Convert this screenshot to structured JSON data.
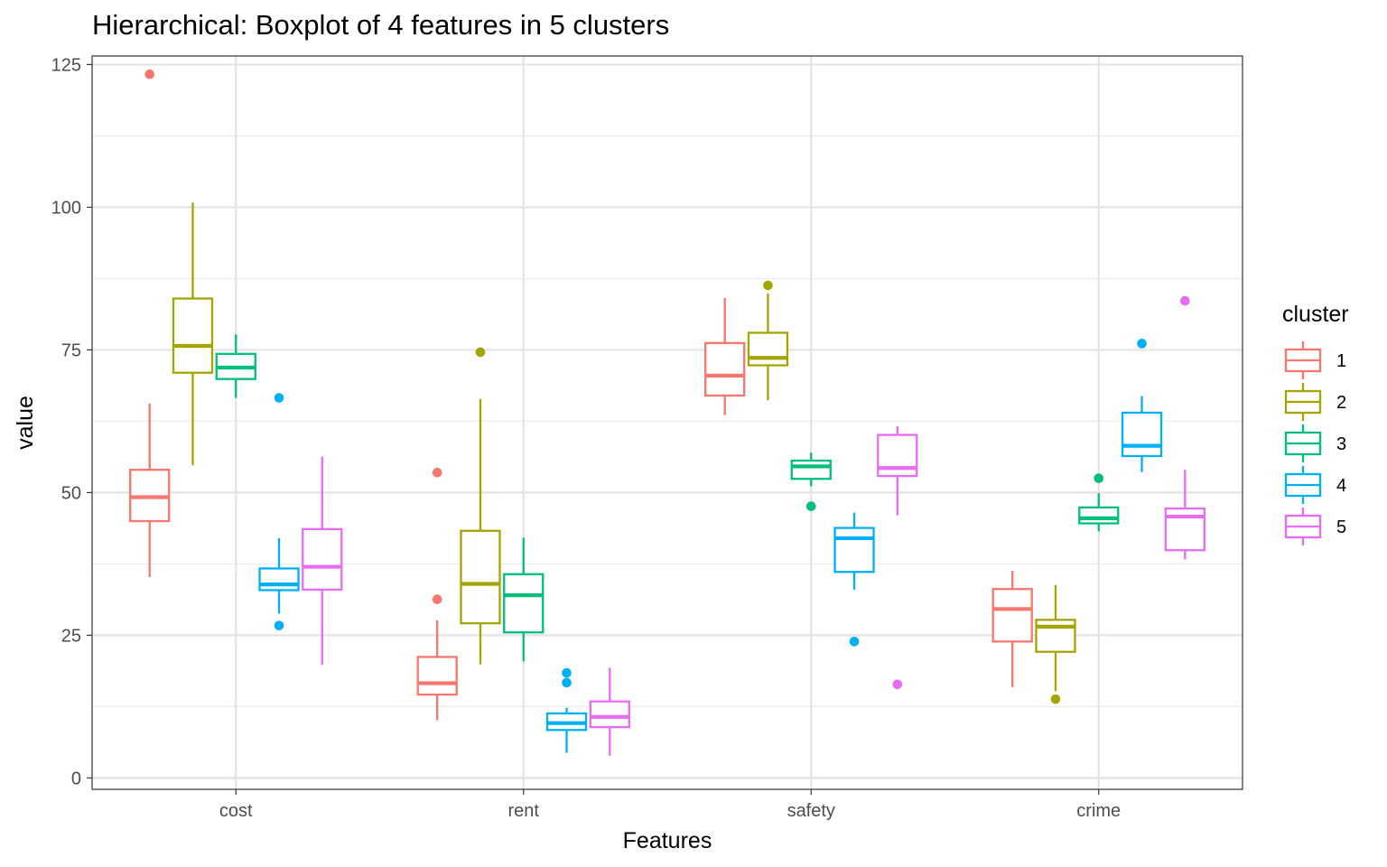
{
  "chart_data": {
    "type": "boxplot",
    "title": "Hierarchical: Boxplot of 4 features in 5 clusters",
    "xlabel": "Features",
    "ylabel": "value",
    "categories": [
      "cost",
      "rent",
      "safety",
      "crime"
    ],
    "ylim": [
      -2,
      126.5
    ],
    "yticks": [
      0,
      25,
      50,
      75,
      100,
      125
    ],
    "grid": true,
    "legend": {
      "title": "cluster",
      "position": "right"
    },
    "series": [
      {
        "name": "1",
        "color": "#F8766D",
        "boxes": [
          {
            "lower": 35.2,
            "q1": 45.0,
            "median": 49.2,
            "q3": 54.0,
            "upper": 65.6,
            "outliers": [
              123.3
            ]
          },
          {
            "lower": 10.1,
            "q1": 14.6,
            "median": 16.6,
            "q3": 21.2,
            "upper": 27.6,
            "outliers": [
              53.5,
              31.3
            ]
          },
          {
            "lower": 63.6,
            "q1": 67.0,
            "median": 70.5,
            "q3": 76.2,
            "upper": 84.1,
            "outliers": []
          },
          {
            "lower": 15.9,
            "q1": 23.9,
            "median": 29.6,
            "q3": 33.1,
            "upper": 36.3,
            "outliers": []
          }
        ]
      },
      {
        "name": "2",
        "color": "#A3A500",
        "boxes": [
          {
            "lower": 54.8,
            "q1": 71.0,
            "median": 75.7,
            "q3": 84.0,
            "upper": 100.8,
            "outliers": []
          },
          {
            "lower": 19.9,
            "q1": 27.1,
            "median": 34.0,
            "q3": 43.3,
            "upper": 66.4,
            "outliers": [
              74.6
            ]
          },
          {
            "lower": 66.2,
            "q1": 72.3,
            "median": 73.6,
            "q3": 78.0,
            "upper": 84.9,
            "outliers": [
              86.3
            ]
          },
          {
            "lower": 15.2,
            "q1": 22.1,
            "median": 26.5,
            "q3": 27.7,
            "upper": 33.8,
            "outliers": [
              13.8
            ]
          }
        ]
      },
      {
        "name": "3",
        "color": "#00BF7D",
        "boxes": [
          {
            "lower": 66.6,
            "q1": 69.9,
            "median": 71.9,
            "q3": 74.3,
            "upper": 77.7,
            "outliers": []
          },
          {
            "lower": 20.4,
            "q1": 25.5,
            "median": 32.0,
            "q3": 35.7,
            "upper": 42.1,
            "outliers": []
          },
          {
            "lower": 51.1,
            "q1": 52.4,
            "median": 54.6,
            "q3": 55.6,
            "upper": 57.0,
            "outliers": [
              47.6
            ]
          },
          {
            "lower": 43.2,
            "q1": 44.6,
            "median": 45.5,
            "q3": 47.4,
            "upper": 49.9,
            "outliers": [
              52.5
            ]
          }
        ]
      },
      {
        "name": "4",
        "color": "#00B0F6",
        "boxes": [
          {
            "lower": 28.8,
            "q1": 32.9,
            "median": 33.9,
            "q3": 36.7,
            "upper": 42.0,
            "outliers": [
              66.6,
              26.7
            ]
          },
          {
            "lower": 4.4,
            "q1": 8.4,
            "median": 9.6,
            "q3": 11.3,
            "upper": 12.3,
            "outliers": [
              18.4,
              16.7
            ]
          },
          {
            "lower": 33.0,
            "q1": 36.1,
            "median": 42.0,
            "q3": 43.8,
            "upper": 46.5,
            "outliers": [
              23.9
            ]
          },
          {
            "lower": 53.6,
            "q1": 56.4,
            "median": 58.2,
            "q3": 64.0,
            "upper": 66.9,
            "outliers": [
              76.1
            ]
          }
        ]
      },
      {
        "name": "5",
        "color": "#E76BF3",
        "boxes": [
          {
            "lower": 19.8,
            "q1": 33.0,
            "median": 37.0,
            "q3": 43.6,
            "upper": 56.3,
            "outliers": []
          },
          {
            "lower": 3.9,
            "q1": 8.9,
            "median": 10.7,
            "q3": 13.4,
            "upper": 19.3,
            "outliers": []
          },
          {
            "lower": 46.0,
            "q1": 52.9,
            "median": 54.3,
            "q3": 60.1,
            "upper": 61.6,
            "outliers": [
              16.4
            ]
          },
          {
            "lower": 38.3,
            "q1": 39.9,
            "median": 45.8,
            "q3": 47.2,
            "upper": 54.0,
            "outliers": [
              83.6
            ]
          }
        ]
      }
    ]
  }
}
